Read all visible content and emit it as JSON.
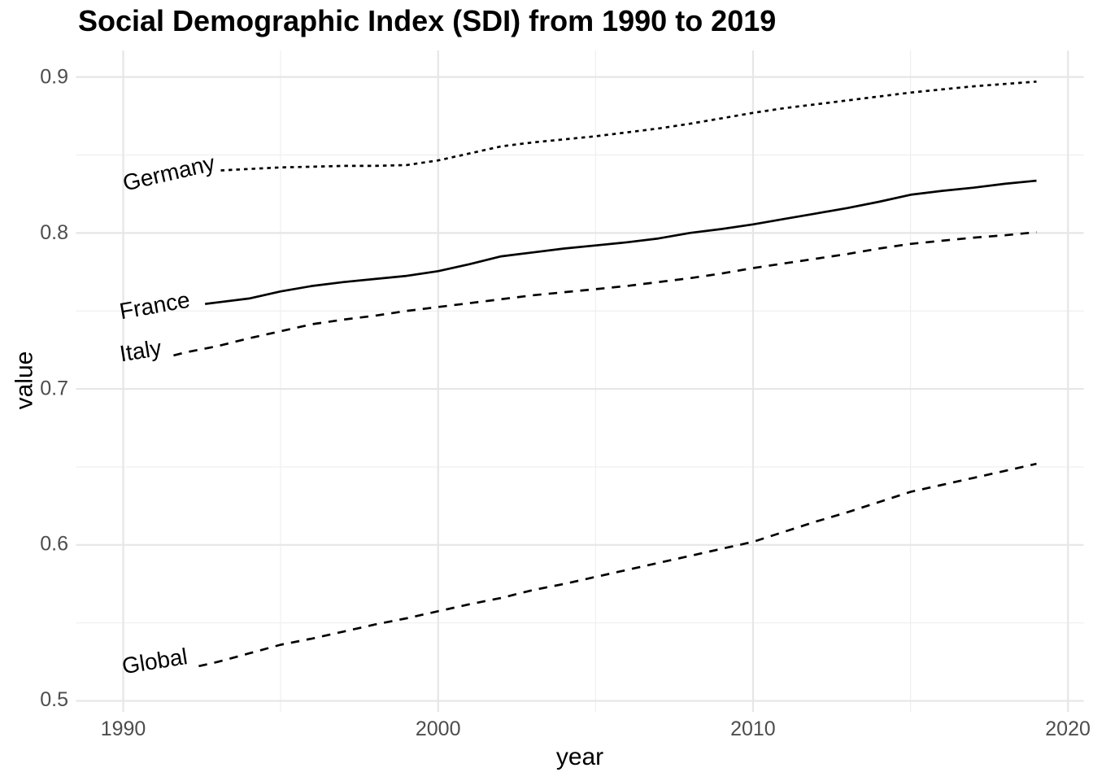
{
  "title": "Social Demographic Index (SDI) from 1990 to 2019",
  "chart_data": {
    "type": "line",
    "title": "Social Demographic Index (SDI) from 1990 to 2019",
    "xlabel": "year",
    "ylabel": "value",
    "x_range": [
      1988.5,
      2020.5
    ],
    "y_range": [
      0.493,
      0.917
    ],
    "grid": true,
    "legend_position": "direct-labels-on-lines",
    "x_major_ticks": [
      1990,
      2000,
      2010,
      2020
    ],
    "x_minor_ticks": [
      1995,
      2005,
      2015
    ],
    "y_major_ticks": [
      0.9,
      0.8,
      0.7,
      0.6,
      0.5
    ],
    "y_minor_ticks": [
      0.85,
      0.75,
      0.65,
      0.55
    ],
    "x_tick_labels": [
      "1990",
      "2000",
      "2010",
      "2020"
    ],
    "y_tick_labels": [
      "0.9",
      "0.8",
      "0.7",
      "0.6",
      "0.5"
    ],
    "years": [
      1990,
      1991,
      1992,
      1993,
      1994,
      1995,
      1996,
      1997,
      1998,
      1999,
      2000,
      2001,
      2002,
      2003,
      2004,
      2005,
      2006,
      2007,
      2008,
      2009,
      2010,
      2011,
      2012,
      2013,
      2014,
      2015,
      2016,
      2017,
      2018,
      2019
    ],
    "series": [
      {
        "name": "Germany",
        "linetype": "dotted",
        "label_x": 1991.45,
        "label_y": 0.8385,
        "label_angle": -13,
        "line_start_year": 1993.1,
        "values": [
          0.837,
          0.838,
          0.839,
          0.84,
          0.841,
          0.842,
          0.8425,
          0.843,
          0.843,
          0.8435,
          0.8465,
          0.851,
          0.8555,
          0.858,
          0.86,
          0.862,
          0.8645,
          0.867,
          0.87,
          0.8735,
          0.877,
          0.88,
          0.8825,
          0.885,
          0.8875,
          0.89,
          0.892,
          0.894,
          0.8955,
          0.897
        ]
      },
      {
        "name": "France",
        "linetype": "solid",
        "label_x": 1991.0,
        "label_y": 0.7535,
        "label_angle": -10,
        "line_start_year": 1992.6,
        "values": [
          0.75,
          0.7515,
          0.753,
          0.7555,
          0.758,
          0.7625,
          0.766,
          0.7685,
          0.7705,
          0.7725,
          0.7755,
          0.78,
          0.785,
          0.7875,
          0.79,
          0.792,
          0.794,
          0.7965,
          0.8,
          0.8025,
          0.8055,
          0.809,
          0.8125,
          0.816,
          0.82,
          0.8245,
          0.827,
          0.829,
          0.8315,
          0.8335
        ]
      },
      {
        "name": "Italy",
        "linetype": "dashed",
        "label_x": 1990.55,
        "label_y": 0.7245,
        "label_angle": -9,
        "line_start_year": 1991.6,
        "values": [
          0.715,
          0.7185,
          0.7235,
          0.7275,
          0.7325,
          0.737,
          0.7415,
          0.7445,
          0.747,
          0.75,
          0.7525,
          0.755,
          0.7575,
          0.76,
          0.762,
          0.764,
          0.766,
          0.7685,
          0.771,
          0.774,
          0.7775,
          0.7805,
          0.7835,
          0.7865,
          0.79,
          0.793,
          0.795,
          0.797,
          0.7985,
          0.8005
        ]
      },
      {
        "name": "Global",
        "linetype": "dashed",
        "label_x": 1991.0,
        "label_y": 0.5255,
        "label_angle": -9,
        "line_start_year": 1992.4,
        "values": [
          0.512,
          0.516,
          0.5205,
          0.525,
          0.5305,
          0.536,
          0.54,
          0.5445,
          0.549,
          0.553,
          0.5575,
          0.562,
          0.566,
          0.571,
          0.575,
          0.5795,
          0.584,
          0.5885,
          0.593,
          0.5975,
          0.602,
          0.6085,
          0.615,
          0.621,
          0.6275,
          0.634,
          0.6385,
          0.643,
          0.6475,
          0.652
        ]
      }
    ],
    "colors": {
      "line": "#000000",
      "grid_major": "#e6e6e6",
      "grid_minor": "#efefef",
      "axis_text": "#4d4d4d",
      "text": "#000000",
      "background": "#ffffff"
    }
  }
}
